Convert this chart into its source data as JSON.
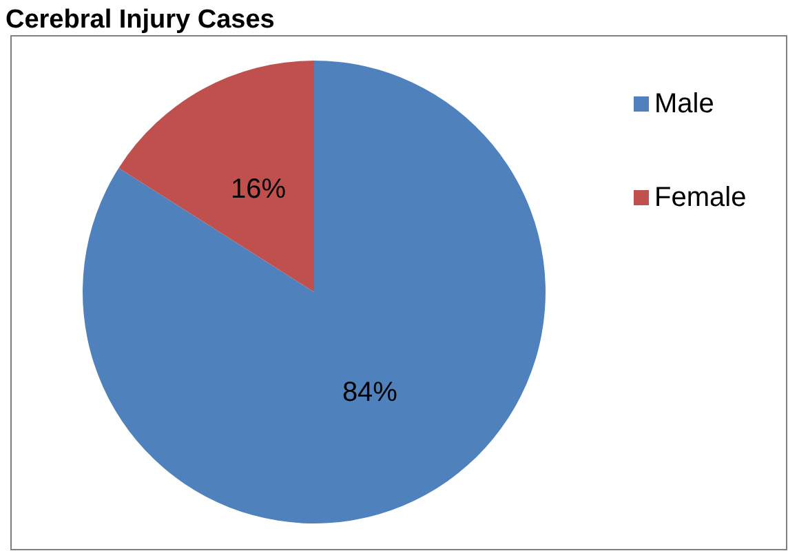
{
  "chart_data": {
    "type": "pie",
    "title": "Cerebral Injury Cases",
    "categories": [
      "Male",
      "Female"
    ],
    "values": [
      84,
      16
    ],
    "colors": [
      "#4f81bd",
      "#c0504d"
    ],
    "value_labels": [
      "84%",
      "16%"
    ],
    "legend": "right"
  }
}
